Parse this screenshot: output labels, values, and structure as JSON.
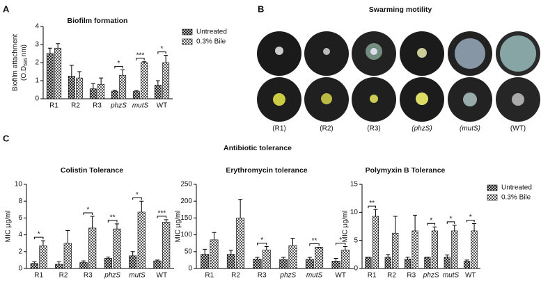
{
  "panel_labels": [
    "A",
    "B",
    "C"
  ],
  "section_title": "Antibiotic tolerance",
  "swarming": {
    "title": "Swarming motility",
    "labels": [
      "(R1)",
      "(R2)",
      "(R3)",
      "(phzS)",
      "(mutS)",
      "(WT)"
    ]
  },
  "chart_data": [
    {
      "type": "bar",
      "title": "Biofilm formation",
      "y_label": "Biofilm attachment",
      "y_label_2": [
        "(O.D",
        "595",
        "nm)"
      ],
      "categories": [
        "R1",
        "R2",
        "R3",
        "phzS",
        "mutS",
        "WT"
      ],
      "ylim": [
        0,
        4
      ],
      "yticks": [
        0,
        1,
        2,
        3,
        4
      ],
      "legend": true,
      "series": [
        {
          "name": "Untreated",
          "color": "#222222",
          "values": [
            2.5,
            1.25,
            0.55,
            0.42,
            0.4,
            0.75
          ],
          "errors": [
            0.3,
            0.6,
            0.3,
            0.05,
            0.05,
            0.25
          ]
        },
        {
          "name": "0.3% Bile",
          "color": "#555555",
          "values": [
            2.8,
            1.15,
            0.8,
            1.3,
            2.0,
            2.0
          ],
          "errors": [
            0.25,
            0.35,
            0.35,
            0.3,
            0.05,
            0.4
          ]
        }
      ],
      "significance": [
        null,
        null,
        null,
        "*",
        "***",
        "*"
      ]
    },
    {
      "type": "bar",
      "title": "Colistin Tolerance",
      "y_label": "MIC μg/ml",
      "categories": [
        "R1",
        "R2",
        "R3",
        "phzS",
        "mutS",
        "WT"
      ],
      "ylim": [
        0,
        10
      ],
      "yticks": [
        0,
        2,
        4,
        6,
        8,
        10
      ],
      "legend": false,
      "series": [
        {
          "name": "Untreated",
          "color": "#222222",
          "values": [
            0.6,
            0.5,
            0.7,
            1.2,
            1.5,
            0.9
          ],
          "errors": [
            0.2,
            0.3,
            0.2,
            0.15,
            0.5,
            0.1
          ]
        },
        {
          "name": "0.3% Bile",
          "color": "#555555",
          "values": [
            2.7,
            3.0,
            4.8,
            4.7,
            6.7,
            5.5
          ],
          "errors": [
            0.6,
            1.5,
            1.4,
            0.6,
            1.3,
            0.3
          ]
        }
      ],
      "significance": [
        "*",
        null,
        "*",
        "**",
        "*",
        "***"
      ]
    },
    {
      "type": "bar",
      "title": "Erythromycin tolerance",
      "y_label": "MIC μg/ml",
      "categories": [
        "R1",
        "R2",
        "R3",
        "phzS",
        "mutS",
        "WT"
      ],
      "ylim": [
        0,
        250
      ],
      "yticks": [
        0,
        50,
        100,
        150,
        200,
        250
      ],
      "legend": false,
      "series": [
        {
          "name": "Untreated",
          "color": "#222222",
          "values": [
            42,
            42,
            28,
            27,
            27,
            22
          ],
          "errors": [
            15,
            12,
            5,
            6,
            6,
            8
          ]
        },
        {
          "name": "0.3% Bile",
          "color": "#555555",
          "values": [
            85,
            150,
            55,
            68,
            63,
            55
          ],
          "errors": [
            22,
            55,
            10,
            22,
            0,
            10
          ]
        }
      ],
      "significance": [
        null,
        null,
        "*",
        null,
        "**",
        "*"
      ]
    },
    {
      "type": "bar",
      "title": "Polymyxin B Tolerance",
      "y_label": "MIC μg/ml",
      "categories": [
        "R1",
        "R2",
        "R3",
        "phzS",
        "mutS",
        "WT"
      ],
      "ylim": [
        0,
        15
      ],
      "yticks": [
        0,
        5,
        10,
        15
      ],
      "legend": true,
      "series": [
        {
          "name": "Untreated",
          "color": "#222222",
          "values": [
            2,
            2,
            1.7,
            2,
            2,
            1.3
          ],
          "errors": [
            0,
            0.5,
            0.3,
            0,
            0.4,
            0.2
          ]
        },
        {
          "name": "0.3% Bile",
          "color": "#555555",
          "values": [
            9.3,
            6.3,
            6.7,
            6.7,
            6.7,
            6.7
          ],
          "errors": [
            1.2,
            3,
            2.8,
            0.7,
            1,
            1.3
          ]
        }
      ],
      "significance": [
        "**",
        null,
        null,
        "*",
        "*",
        "*"
      ]
    }
  ]
}
